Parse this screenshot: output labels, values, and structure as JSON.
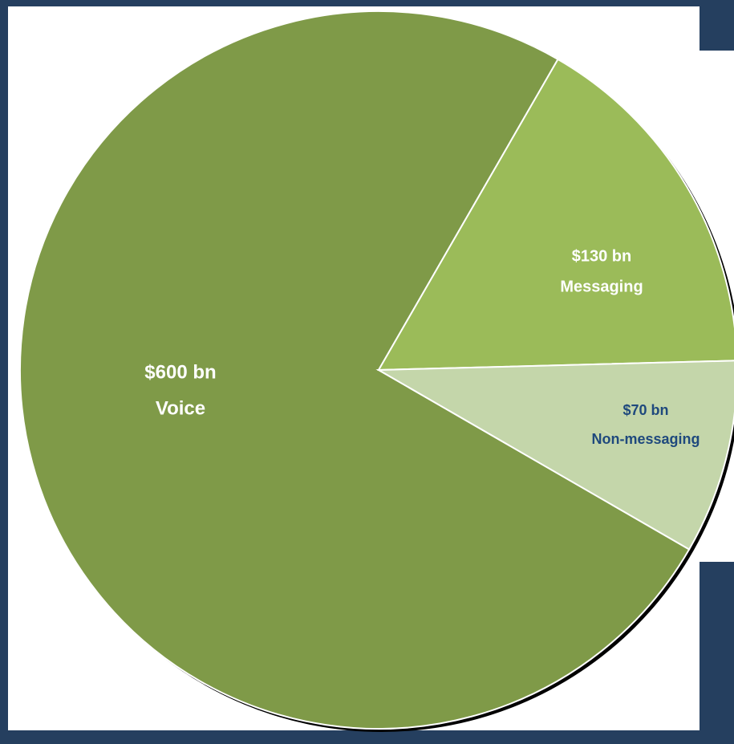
{
  "chart_data": {
    "type": "pie",
    "categories": [
      "Voice",
      "Messaging",
      "Non-messaging"
    ],
    "values": [
      600,
      130,
      70
    ],
    "value_labels": [
      "$600 bn",
      "$130 bn",
      "$70 bn"
    ],
    "colors": [
      "#7f9a48",
      "#9bbb59",
      "#c4d6aa"
    ],
    "label_colors": [
      "#ffffff",
      "#ffffff",
      "#1f497d"
    ]
  }
}
